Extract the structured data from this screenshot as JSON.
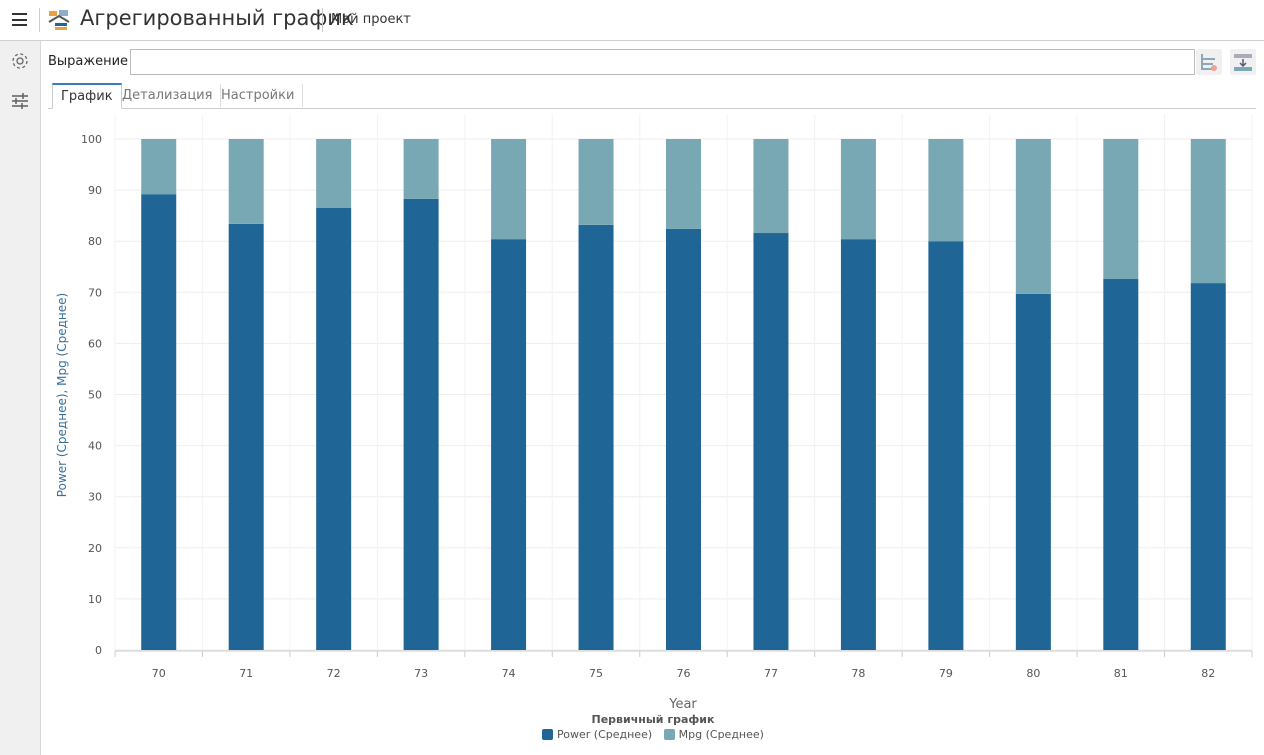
{
  "header": {
    "title": "Агрегированный график",
    "project": "Мой проект"
  },
  "toolbar": {
    "expression_label": "Выражение",
    "expression_value": ""
  },
  "tabs": [
    {
      "label": "График",
      "active": true
    },
    {
      "label": "Детализация",
      "active": false
    },
    {
      "label": "Настройки",
      "active": false
    }
  ],
  "sidebar": {
    "icons": [
      "gear-icon",
      "sliders-icon"
    ]
  },
  "colors": {
    "power": "#1f6696",
    "mpg": "#78a8b3",
    "accent": "#3a7cb8"
  },
  "chart_data": {
    "type": "bar",
    "stacked": "percent",
    "categories": [
      "70",
      "71",
      "72",
      "73",
      "74",
      "75",
      "76",
      "77",
      "78",
      "79",
      "80",
      "81",
      "82"
    ],
    "series": [
      {
        "name": "Power (Среднее)",
        "values": [
          89.2,
          83.4,
          86.5,
          88.3,
          80.4,
          83.2,
          82.4,
          81.6,
          80.4,
          80.0,
          69.7,
          72.6,
          71.8
        ]
      },
      {
        "name": "Mpg (Среднее)",
        "values": [
          10.8,
          16.6,
          13.5,
          11.7,
          19.6,
          16.8,
          17.6,
          18.4,
          19.6,
          20.0,
          30.3,
          27.4,
          28.2
        ]
      }
    ],
    "xlabel": "Year",
    "ylabel": "Power (Среднее), Mpg (Среднее)",
    "ylim": [
      0,
      100
    ],
    "yticks": [
      "0",
      "10",
      "20",
      "30",
      "40",
      "50",
      "60",
      "70",
      "80",
      "90",
      "100"
    ],
    "grid": true,
    "legend_title": "Первичный график",
    "legend_position": "bottom"
  }
}
